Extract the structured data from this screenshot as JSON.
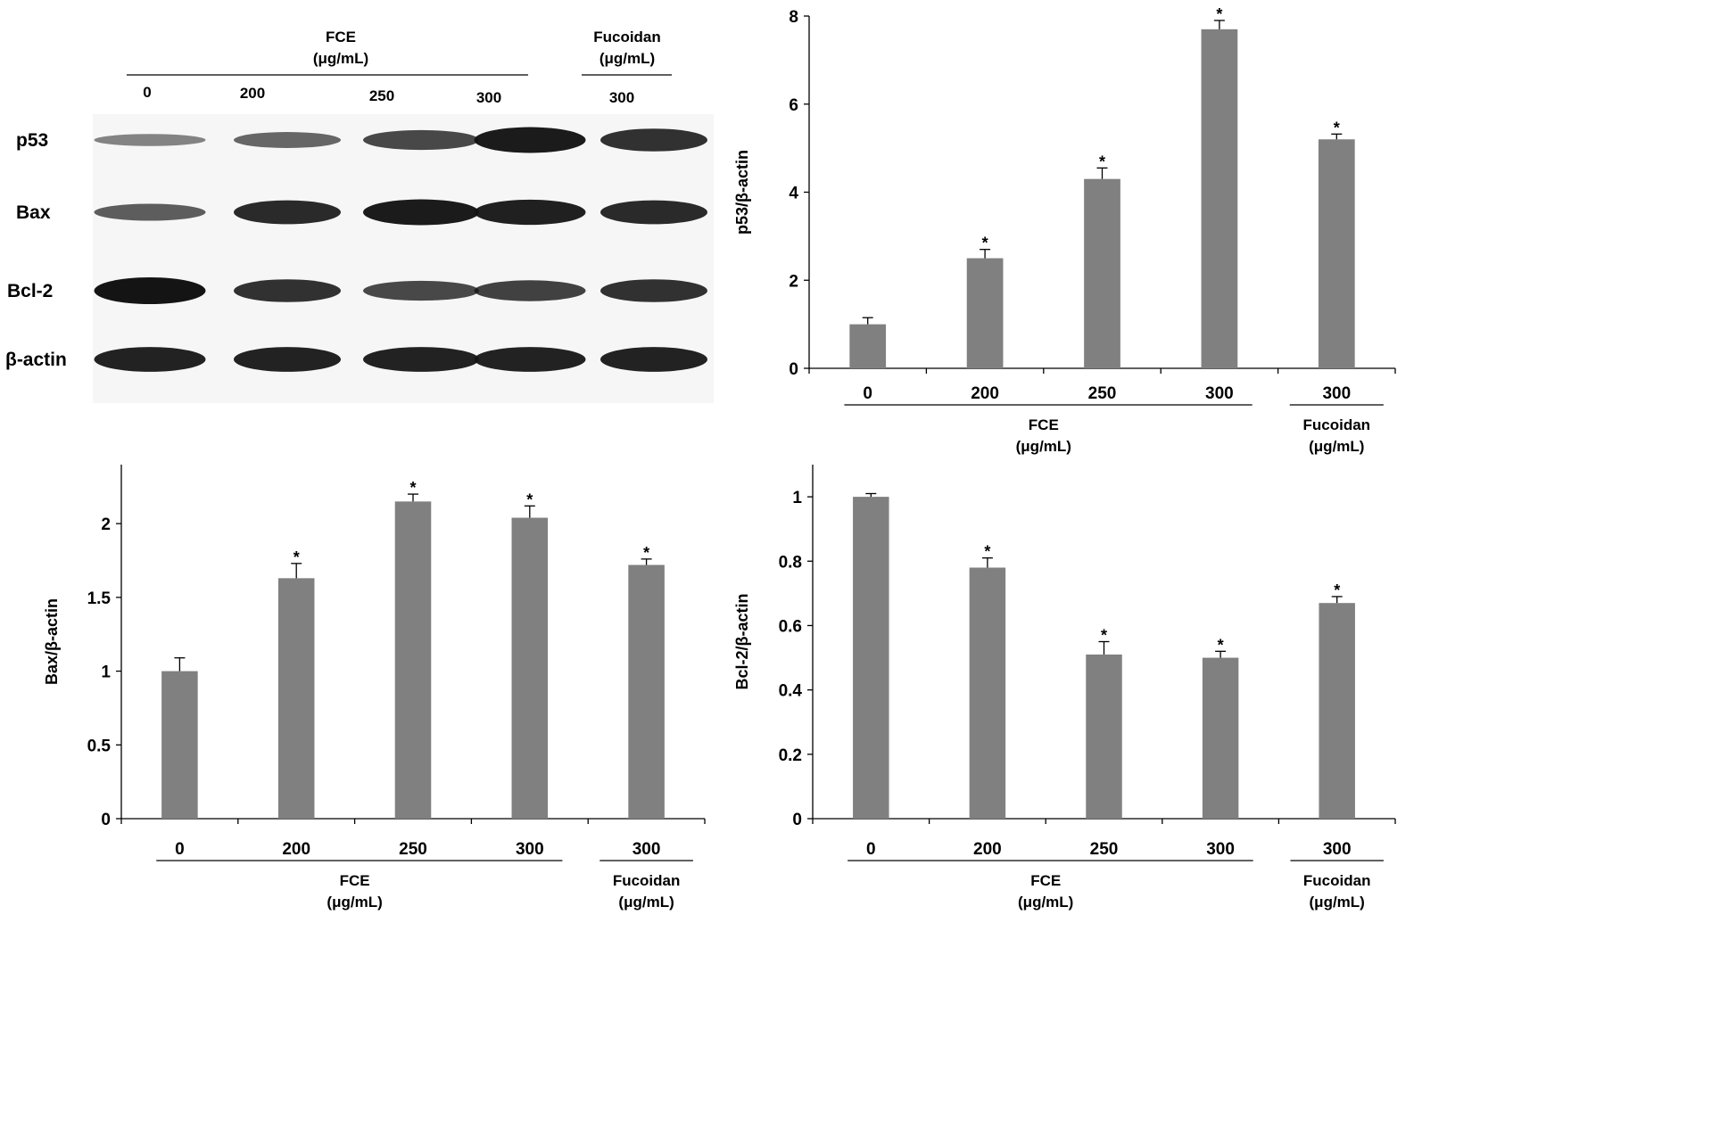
{
  "chart_data": [
    {
      "type": "bar",
      "panel": "p53",
      "categories": [
        "0",
        "200",
        "250",
        "300",
        "300"
      ],
      "values": [
        1.0,
        2.5,
        4.3,
        7.7,
        5.2
      ],
      "errors": [
        0.15,
        0.2,
        0.25,
        0.2,
        0.12
      ],
      "significant": [
        false,
        true,
        true,
        true,
        true
      ],
      "ylabel": "p53/β-actin",
      "ylim": [
        0,
        8
      ],
      "yticks": [
        "0",
        "2",
        "4",
        "6",
        "8"
      ],
      "groups": [
        {
          "name": "FCE",
          "unit": "(μg/mL)"
        },
        {
          "name": "Fucoidan",
          "unit": "(μg/mL)"
        }
      ]
    },
    {
      "type": "bar",
      "panel": "Bax",
      "categories": [
        "0",
        "200",
        "250",
        "300",
        "300"
      ],
      "values": [
        1.0,
        1.63,
        2.15,
        2.04,
        1.72
      ],
      "errors": [
        0.09,
        0.1,
        0.05,
        0.08,
        0.04
      ],
      "significant": [
        false,
        true,
        true,
        true,
        true
      ],
      "ylabel": "Bax/β-actin",
      "ylim": [
        0,
        2.4
      ],
      "yticks": [
        "0",
        "0.5",
        "1",
        "1.5",
        "2"
      ],
      "groups": [
        {
          "name": "FCE",
          "unit": "(μg/mL)"
        },
        {
          "name": "Fucoidan",
          "unit": "(μg/mL)"
        }
      ]
    },
    {
      "type": "bar",
      "panel": "Bcl-2",
      "categories": [
        "0",
        "200",
        "250",
        "300",
        "300"
      ],
      "values": [
        1.0,
        0.78,
        0.51,
        0.5,
        0.67
      ],
      "errors": [
        0.01,
        0.03,
        0.04,
        0.02,
        0.02
      ],
      "significant": [
        false,
        true,
        true,
        true,
        true
      ],
      "ylabel": "Bcl-2/β-actin",
      "ylim": [
        0,
        1.1
      ],
      "yticks": [
        "0",
        "0.2",
        "0.4",
        "0.6",
        "0.8",
        "1"
      ],
      "groups": [
        {
          "name": "FCE",
          "unit": "(μg/mL)"
        },
        {
          "name": "Fucoidan",
          "unit": "(μg/mL)"
        }
      ]
    }
  ],
  "blot": {
    "fce_label": "FCE",
    "fce_unit": "(μg/mL)",
    "fucoidan_label": "Fucoidan",
    "fucoidan_unit": "(μg/mL)",
    "lanes": [
      "0",
      "200",
      "250",
      "300",
      "300"
    ],
    "rows": [
      {
        "label": "p53",
        "intensity": [
          0.25,
          0.45,
          0.65,
          0.95,
          0.8
        ]
      },
      {
        "label": "Bax",
        "intensity": [
          0.5,
          0.85,
          0.95,
          0.92,
          0.85
        ]
      },
      {
        "label": "Bcl-2",
        "intensity": [
          1.0,
          0.8,
          0.65,
          0.7,
          0.8
        ]
      },
      {
        "label": "β-actin",
        "intensity": [
          0.9,
          0.9,
          0.9,
          0.9,
          0.9
        ]
      }
    ]
  },
  "significance_marker": "*",
  "colors": {
    "bar": "#808080",
    "band": "#141414",
    "axis": "#000000"
  }
}
